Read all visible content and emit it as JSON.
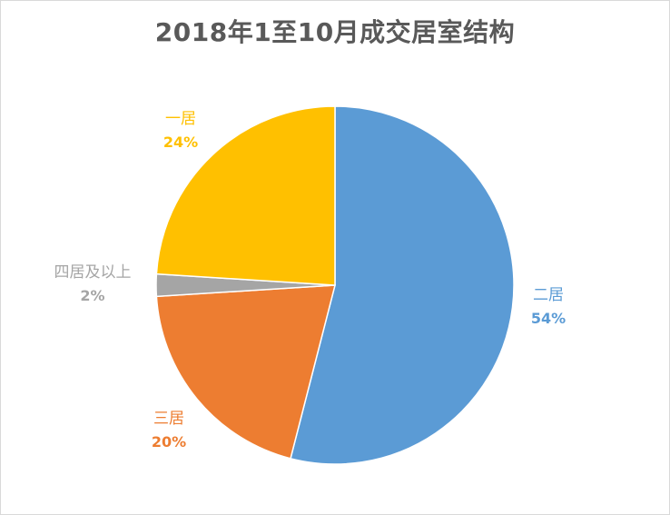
{
  "chart_data": {
    "type": "pie",
    "title": "2018年1至10月成交居室结构",
    "categories": [
      "二居",
      "三居",
      "四居及以上",
      "一居"
    ],
    "values": [
      54,
      20,
      2,
      24
    ],
    "value_labels": [
      "54%",
      "20%",
      "2%",
      "24%"
    ],
    "colors": [
      "#5b9bd5",
      "#ed7d31",
      "#a5a5a5",
      "#ffc000"
    ],
    "start_angle_deg": 0,
    "direction": "clockwise",
    "legend": "none"
  }
}
